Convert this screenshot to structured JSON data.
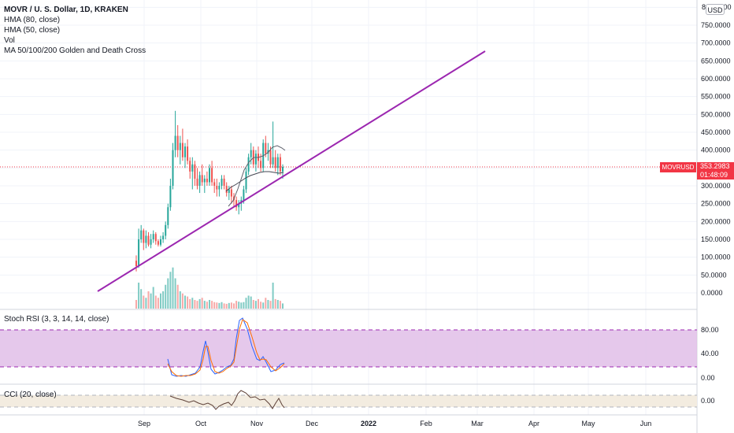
{
  "legend": {
    "symbol": "MOVR / U. S. Dollar, 1D, KRAKEN",
    "indicators": [
      "HMA (80, close)",
      "HMA (50, close)",
      "Vol",
      "MA 50/100/200 Golden and Death Cross"
    ]
  },
  "price_axis": {
    "currency_button": "USD",
    "top_partial_label": "800.0000",
    "labels": [
      "750.0000",
      "700.0000",
      "650.0000",
      "600.0000",
      "550.0000",
      "500.0000",
      "450.0000",
      "400.0000",
      "300.0000",
      "250.0000",
      "200.0000",
      "150.0000",
      "100.0000",
      "50.0000",
      "0.0000"
    ]
  },
  "current_price": {
    "symbol_tag": "MOVRUSD",
    "price": "353.2983",
    "countdown": "01:48:09",
    "color": "#f23645"
  },
  "stoch_rsi": {
    "label": "Stoch RSI (3, 3, 14, 14, close)",
    "axis_labels": [
      "80.00",
      "40.00",
      "0.00"
    ],
    "band_color": "#e1bee7"
  },
  "cci": {
    "label": "CCI (20, close)",
    "axis_labels": [
      "0.00"
    ],
    "band_color": "#f3ece0"
  },
  "time_axis": {
    "labels": [
      "Sep",
      "Oct",
      "Nov",
      "Dec",
      "2022",
      "Feb",
      "Mar",
      "Apr",
      "May",
      "Jun"
    ]
  },
  "trendline": {
    "color": "#9c27b0"
  },
  "colors": {
    "up": "#26a69a",
    "down": "#ef5350",
    "grid": "#f0f3fa"
  },
  "chart_data": {
    "type": "candlestick",
    "symbol": "MOVRUSD",
    "interval": "1D",
    "exchange": "KRAKEN",
    "price_range": [
      -30,
      810
    ],
    "candles": [
      [
        90,
        105,
        60,
        75
      ],
      [
        75,
        180,
        70,
        150
      ],
      [
        150,
        190,
        140,
        175
      ],
      [
        175,
        180,
        120,
        140
      ],
      [
        140,
        175,
        125,
        160
      ],
      [
        160,
        170,
        130,
        135
      ],
      [
        135,
        165,
        125,
        150
      ],
      [
        150,
        175,
        140,
        165
      ],
      [
        165,
        170,
        135,
        145
      ],
      [
        145,
        150,
        130,
        135
      ],
      [
        135,
        160,
        130,
        150
      ],
      [
        150,
        170,
        140,
        160
      ],
      [
        160,
        200,
        150,
        190
      ],
      [
        190,
        250,
        180,
        240
      ],
      [
        240,
        320,
        230,
        300
      ],
      [
        300,
        420,
        290,
        400
      ],
      [
        400,
        510,
        380,
        440
      ],
      [
        440,
        470,
        380,
        400
      ],
      [
        400,
        440,
        360,
        420
      ],
      [
        420,
        460,
        370,
        380
      ],
      [
        380,
        420,
        350,
        410
      ],
      [
        410,
        430,
        360,
        370
      ],
      [
        370,
        380,
        320,
        340
      ],
      [
        340,
        380,
        290,
        360
      ],
      [
        360,
        370,
        300,
        320
      ],
      [
        320,
        350,
        290,
        300
      ],
      [
        300,
        340,
        280,
        330
      ],
      [
        330,
        360,
        300,
        310
      ],
      [
        310,
        330,
        280,
        320
      ],
      [
        320,
        340,
        300,
        310
      ],
      [
        310,
        360,
        300,
        350
      ],
      [
        350,
        370,
        300,
        310
      ],
      [
        310,
        320,
        280,
        300
      ],
      [
        300,
        320,
        270,
        290
      ],
      [
        290,
        310,
        270,
        300
      ],
      [
        300,
        330,
        290,
        320
      ],
      [
        320,
        330,
        290,
        300
      ],
      [
        300,
        310,
        270,
        280
      ],
      [
        280,
        300,
        260,
        290
      ],
      [
        290,
        300,
        250,
        270
      ],
      [
        270,
        280,
        240,
        260
      ],
      [
        260,
        270,
        230,
        240
      ],
      [
        240,
        260,
        220,
        250
      ],
      [
        250,
        270,
        230,
        260
      ],
      [
        260,
        300,
        250,
        290
      ],
      [
        290,
        350,
        280,
        340
      ],
      [
        340,
        390,
        330,
        380
      ],
      [
        380,
        420,
        360,
        400
      ],
      [
        400,
        410,
        350,
        360
      ],
      [
        360,
        400,
        340,
        390
      ],
      [
        390,
        410,
        350,
        370
      ],
      [
        370,
        390,
        340,
        350
      ],
      [
        350,
        430,
        340,
        420
      ],
      [
        420,
        440,
        380,
        390
      ],
      [
        390,
        420,
        370,
        400
      ],
      [
        400,
        410,
        350,
        360
      ],
      [
        360,
        480,
        350,
        380
      ],
      [
        380,
        400,
        340,
        350
      ],
      [
        350,
        390,
        330,
        380
      ],
      [
        380,
        390,
        330,
        340
      ],
      [
        340,
        360,
        320,
        353
      ]
    ],
    "volume": [
      20,
      60,
      45,
      30,
      25,
      40,
      35,
      50,
      30,
      25,
      35,
      40,
      55,
      70,
      85,
      95,
      70,
      55,
      40,
      35,
      30,
      28,
      22,
      25,
      20,
      18,
      22,
      25,
      18,
      16,
      20,
      18,
      15,
      14,
      13,
      15,
      12,
      11,
      13,
      14,
      12,
      18,
      16,
      14,
      15,
      25,
      30,
      28,
      20,
      18,
      22,
      16,
      14,
      25,
      20,
      18,
      60,
      22,
      20,
      18,
      12
    ],
    "trendline": {
      "start": {
        "date": "2021-08-05",
        "price": 5
      },
      "end": {
        "date": "2022-03-22",
        "price": 680
      }
    },
    "stoch_rsi": {
      "range": [
        0,
        100
      ],
      "upper": 80,
      "lower": 20
    },
    "cci": {
      "upper": 100,
      "lower": -100
    }
  }
}
